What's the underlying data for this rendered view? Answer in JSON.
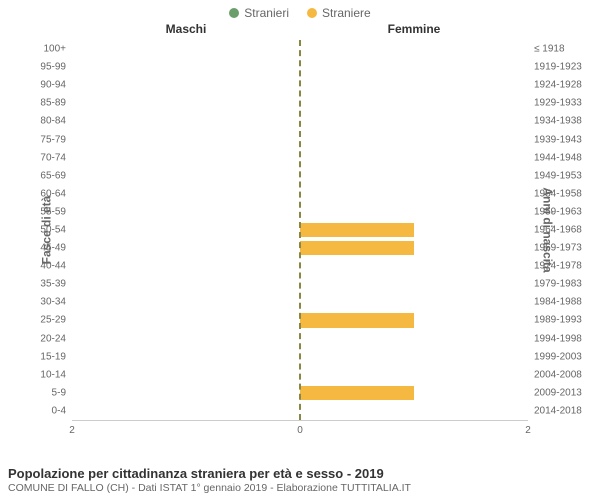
{
  "legend": {
    "male": {
      "label": "Stranieri",
      "color": "#6b9e6b"
    },
    "female": {
      "label": "Straniere",
      "color": "#f5b841"
    }
  },
  "headers": {
    "left": "Maschi",
    "right": "Femmine"
  },
  "y_axis_left_label": "Fasce di età",
  "y_axis_right_label": "Anni di nascita",
  "x_axis": {
    "max": 2,
    "ticks": [
      {
        "pos": 0,
        "label": "2"
      },
      {
        "pos": 0.5,
        "label": "0"
      },
      {
        "pos": 1,
        "label": "2"
      }
    ]
  },
  "rows": [
    {
      "age": "100+",
      "birth": "≤ 1918",
      "m": 0,
      "f": 0
    },
    {
      "age": "95-99",
      "birth": "1919-1923",
      "m": 0,
      "f": 0
    },
    {
      "age": "90-94",
      "birth": "1924-1928",
      "m": 0,
      "f": 0
    },
    {
      "age": "85-89",
      "birth": "1929-1933",
      "m": 0,
      "f": 0
    },
    {
      "age": "80-84",
      "birth": "1934-1938",
      "m": 0,
      "f": 0
    },
    {
      "age": "75-79",
      "birth": "1939-1943",
      "m": 0,
      "f": 0
    },
    {
      "age": "70-74",
      "birth": "1944-1948",
      "m": 0,
      "f": 0
    },
    {
      "age": "65-69",
      "birth": "1949-1953",
      "m": 0,
      "f": 0
    },
    {
      "age": "60-64",
      "birth": "1954-1958",
      "m": 0,
      "f": 0
    },
    {
      "age": "55-59",
      "birth": "1959-1963",
      "m": 0,
      "f": 0
    },
    {
      "age": "50-54",
      "birth": "1964-1968",
      "m": 0,
      "f": 1
    },
    {
      "age": "45-49",
      "birth": "1969-1973",
      "m": 0,
      "f": 1
    },
    {
      "age": "40-44",
      "birth": "1974-1978",
      "m": 0,
      "f": 0
    },
    {
      "age": "35-39",
      "birth": "1979-1983",
      "m": 0,
      "f": 0
    },
    {
      "age": "30-34",
      "birth": "1984-1988",
      "m": 0,
      "f": 0
    },
    {
      "age": "25-29",
      "birth": "1989-1993",
      "m": 0,
      "f": 1
    },
    {
      "age": "20-24",
      "birth": "1994-1998",
      "m": 0,
      "f": 0
    },
    {
      "age": "15-19",
      "birth": "1999-2003",
      "m": 0,
      "f": 0
    },
    {
      "age": "10-14",
      "birth": "2004-2008",
      "m": 0,
      "f": 0
    },
    {
      "age": "5-9",
      "birth": "2009-2013",
      "m": 0,
      "f": 1
    },
    {
      "age": "0-4",
      "birth": "2014-2018",
      "m": 0,
      "f": 0
    }
  ],
  "colors": {
    "male_bar": "#6b9e6b",
    "female_bar": "#f5b841",
    "background": "#ffffff",
    "center_line": "#888844",
    "grid": "#cccccc",
    "text": "#666666"
  },
  "footer": {
    "title": "Popolazione per cittadinanza straniera per età e sesso - 2019",
    "subtitle": "COMUNE DI FALLO (CH) - Dati ISTAT 1° gennaio 2019 - Elaborazione TUTTITALIA.IT"
  }
}
